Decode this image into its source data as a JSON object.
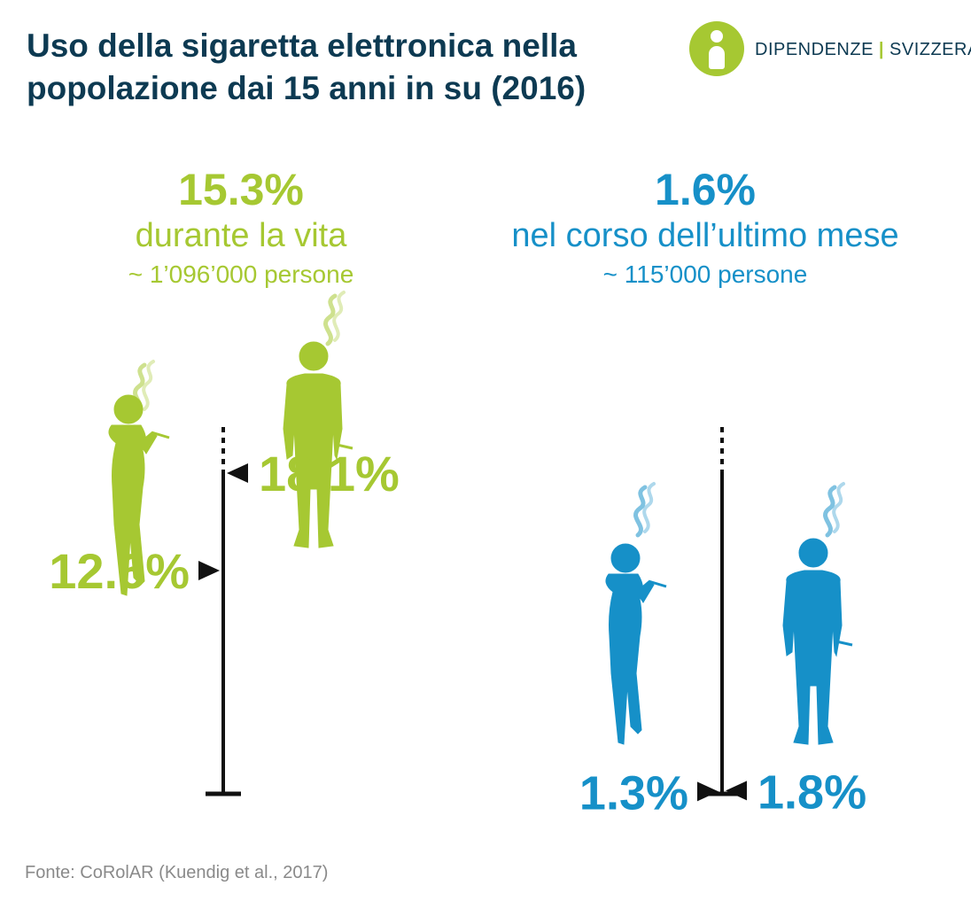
{
  "title": "Uso della sigaretta elettronica nella popolazione dai 15 anni in su (2016)",
  "logo": {
    "left": "DIPENDENZE",
    "right": "SVIZZERA"
  },
  "colors": {
    "green": "#a6c832",
    "blue": "#1690c8",
    "navy": "#0d3a52",
    "axis": "#111111"
  },
  "icons": [
    "woman-silhouette-icon",
    "man-silhouette-icon",
    "vapor-icon"
  ],
  "lifetime": {
    "value": "15.3%",
    "label": "durante la vita",
    "people": "~ 1’096’000 persone"
  },
  "last_month": {
    "value": "1.6%",
    "label": "nel corso dell’ultimo mese",
    "people": "~ 115’000 persone"
  },
  "chart_data": [
    {
      "type": "bar",
      "categories": [
        "donne",
        "uomini"
      ],
      "values": [
        12.6,
        18.1
      ],
      "value_labels": [
        "12.6%",
        "18.1%"
      ],
      "color": "#a6c832"
    },
    {
      "type": "bar",
      "categories": [
        "donne",
        "uomini"
      ],
      "values": [
        1.3,
        1.8
      ],
      "value_labels": [
        "1.3%",
        "1.8%"
      ],
      "color": "#1690c8"
    }
  ],
  "source": "Fonte: CoRolAR (Kuendig et al., 2017)"
}
